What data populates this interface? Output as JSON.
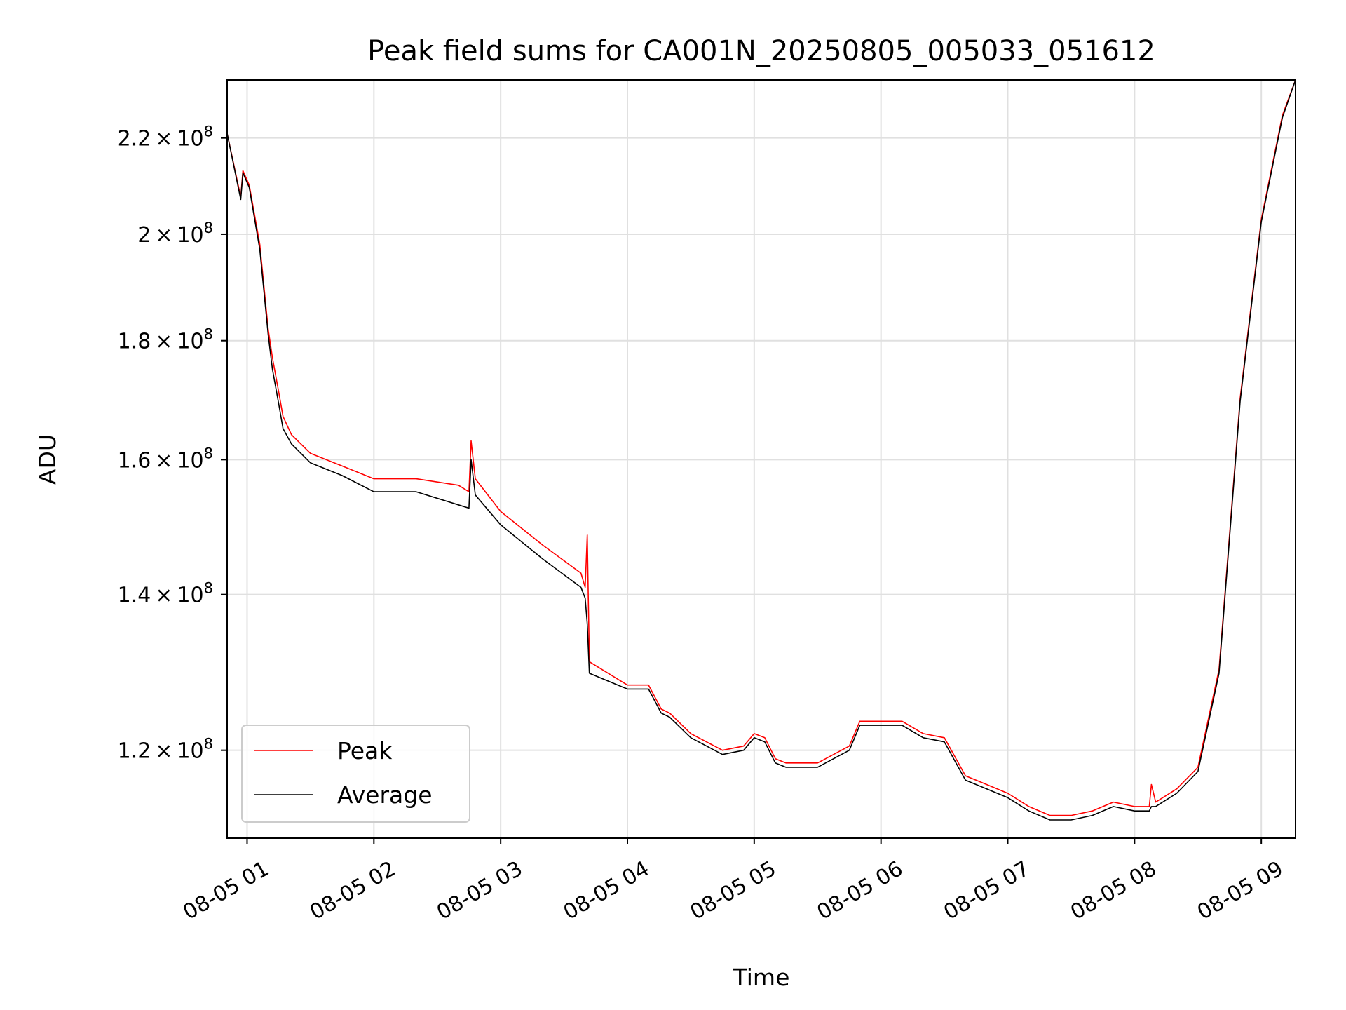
{
  "chart_data": {
    "type": "line",
    "title": "Peak field sums for CA001N_20250805_005033_051612",
    "xlabel": "Time",
    "ylabel": "ADU",
    "x_axis": {
      "kind": "datetime",
      "ticks": [
        "2025-08-05T01:00",
        "2025-08-05T02:00",
        "2025-08-05T03:00",
        "2025-08-05T04:00",
        "2025-08-05T05:00",
        "2025-08-05T06:00",
        "2025-08-05T07:00",
        "2025-08-05T08:00",
        "2025-08-05T09:00"
      ],
      "tick_labels": [
        "08-05 01",
        "08-05 02",
        "08-05 03",
        "08-05 04",
        "08-05 05",
        "08-05 06",
        "08-05 07",
        "08-05 08",
        "08-05 09"
      ],
      "xlim": [
        "2025-08-05T00:50:33",
        "2025-08-05T09:16:12"
      ]
    },
    "y_axis": {
      "scale": "log",
      "ylim": [
        110000000,
        233000000
      ],
      "ticks": [
        120000000,
        140000000,
        160000000,
        180000000,
        200000000,
        220000000
      ],
      "tick_labels": [
        {
          "mant": "1.2",
          "exp": "8"
        },
        {
          "mant": "1.4",
          "exp": "8"
        },
        {
          "mant": "1.6",
          "exp": "8"
        },
        {
          "mant": "1.8",
          "exp": "8"
        },
        {
          "mant": "2",
          "exp": "8"
        },
        {
          "mant": "2.2",
          "exp": "8"
        }
      ]
    },
    "grid": true,
    "legend": {
      "position": "lower-left"
    },
    "series": [
      {
        "name": "Peak",
        "color": "#ff0000",
        "x": [
          "2025-08-05T00:50:33",
          "2025-08-05T00:57:00",
          "2025-08-05T00:58:00",
          "2025-08-05T01:01:00",
          "2025-08-05T01:06:00",
          "2025-08-05T01:10:00",
          "2025-08-05T01:12:00",
          "2025-08-05T01:15:00",
          "2025-08-05T01:17:00",
          "2025-08-05T01:21:00",
          "2025-08-05T01:30:00",
          "2025-08-05T01:45:00",
          "2025-08-05T02:00:00",
          "2025-08-05T02:20:00",
          "2025-08-05T02:40:00",
          "2025-08-05T02:45:00",
          "2025-08-05T02:46:00",
          "2025-08-05T02:48:00",
          "2025-08-05T03:00:00",
          "2025-08-05T03:20:00",
          "2025-08-05T03:38:00",
          "2025-08-05T03:40:00",
          "2025-08-05T03:41:00",
          "2025-08-05T03:42:00",
          "2025-08-05T04:00:00",
          "2025-08-05T04:10:00",
          "2025-08-05T04:16:00",
          "2025-08-05T04:20:00",
          "2025-08-05T04:30:00",
          "2025-08-05T04:45:00",
          "2025-08-05T04:55:00",
          "2025-08-05T05:00:00",
          "2025-08-05T05:05:00",
          "2025-08-05T05:10:00",
          "2025-08-05T05:15:00",
          "2025-08-05T05:30:00",
          "2025-08-05T05:45:00",
          "2025-08-05T05:50:00",
          "2025-08-05T06:10:00",
          "2025-08-05T06:20:00",
          "2025-08-05T06:30:00",
          "2025-08-05T06:40:00",
          "2025-08-05T06:50:00",
          "2025-08-05T07:00:00",
          "2025-08-05T07:10:00",
          "2025-08-05T07:20:00",
          "2025-08-05T07:30:00",
          "2025-08-05T07:40:00",
          "2025-08-05T07:50:00",
          "2025-08-05T08:00:00",
          "2025-08-05T08:07:00",
          "2025-08-05T08:08:00",
          "2025-08-05T08:10:00",
          "2025-08-05T08:20:00",
          "2025-08-05T08:30:00",
          "2025-08-05T08:40:00",
          "2025-08-05T08:50:00",
          "2025-08-05T09:00:00",
          "2025-08-05T09:10:00",
          "2025-08-05T09:16:12"
        ],
        "y": [
          221000000,
          207500000,
          213000000,
          210000000,
          198000000,
          182000000,
          177000000,
          171000000,
          167000000,
          164000000,
          161000000,
          159000000,
          157000000,
          157000000,
          156000000,
          155000000,
          163000000,
          157000000,
          152000000,
          147000000,
          143000000,
          141000000,
          148500000,
          131000000,
          128000000,
          128000000,
          125000000,
          124500000,
          122000000,
          120000000,
          120500000,
          122000000,
          121500000,
          119000000,
          118500000,
          118500000,
          120500000,
          123500000,
          123500000,
          122000000,
          121500000,
          117000000,
          116000000,
          115000000,
          113500000,
          112500000,
          112500000,
          113000000,
          114000000,
          113500000,
          113500000,
          116000000,
          114000000,
          115500000,
          118000000,
          130000000,
          170000000,
          203000000,
          225000000,
          233000000
        ]
      },
      {
        "name": "Average",
        "color": "#000000",
        "x": [
          "2025-08-05T00:50:33",
          "2025-08-05T00:57:00",
          "2025-08-05T00:58:00",
          "2025-08-05T01:01:00",
          "2025-08-05T01:06:00",
          "2025-08-05T01:10:00",
          "2025-08-05T01:12:00",
          "2025-08-05T01:15:00",
          "2025-08-05T01:17:00",
          "2025-08-05T01:21:00",
          "2025-08-05T01:30:00",
          "2025-08-05T01:45:00",
          "2025-08-05T02:00:00",
          "2025-08-05T02:20:00",
          "2025-08-05T02:40:00",
          "2025-08-05T02:45:00",
          "2025-08-05T02:46:00",
          "2025-08-05T02:48:00",
          "2025-08-05T03:00:00",
          "2025-08-05T03:20:00",
          "2025-08-05T03:38:00",
          "2025-08-05T03:40:00",
          "2025-08-05T03:41:00",
          "2025-08-05T03:42:00",
          "2025-08-05T04:00:00",
          "2025-08-05T04:10:00",
          "2025-08-05T04:16:00",
          "2025-08-05T04:20:00",
          "2025-08-05T04:30:00",
          "2025-08-05T04:45:00",
          "2025-08-05T04:55:00",
          "2025-08-05T05:00:00",
          "2025-08-05T05:05:00",
          "2025-08-05T05:10:00",
          "2025-08-05T05:15:00",
          "2025-08-05T05:30:00",
          "2025-08-05T05:45:00",
          "2025-08-05T05:50:00",
          "2025-08-05T06:10:00",
          "2025-08-05T06:20:00",
          "2025-08-05T06:30:00",
          "2025-08-05T06:40:00",
          "2025-08-05T06:50:00",
          "2025-08-05T07:00:00",
          "2025-08-05T07:10:00",
          "2025-08-05T07:20:00",
          "2025-08-05T07:30:00",
          "2025-08-05T07:40:00",
          "2025-08-05T07:50:00",
          "2025-08-05T08:00:00",
          "2025-08-05T08:07:00",
          "2025-08-05T08:08:00",
          "2025-08-05T08:10:00",
          "2025-08-05T08:20:00",
          "2025-08-05T08:30:00",
          "2025-08-05T08:40:00",
          "2025-08-05T08:50:00",
          "2025-08-05T09:00:00",
          "2025-08-05T09:10:00",
          "2025-08-05T09:16:12"
        ],
        "y": [
          221000000,
          207000000,
          212500000,
          209500000,
          197000000,
          181000000,
          175000000,
          169000000,
          165000000,
          162500000,
          159500000,
          157500000,
          155000000,
          155000000,
          153000000,
          152500000,
          160000000,
          154500000,
          150000000,
          145000000,
          141000000,
          139500000,
          136000000,
          129500000,
          127500000,
          127500000,
          124500000,
          124000000,
          121500000,
          119500000,
          120000000,
          121500000,
          121000000,
          118500000,
          118000000,
          118000000,
          120000000,
          123000000,
          123000000,
          121500000,
          121000000,
          116500000,
          115500000,
          114500000,
          113000000,
          112000000,
          112000000,
          112500000,
          113500000,
          113000000,
          113000000,
          113500000,
          113500000,
          115000000,
          117500000,
          129500000,
          169500000,
          202500000,
          224500000,
          233000000
        ]
      }
    ]
  }
}
